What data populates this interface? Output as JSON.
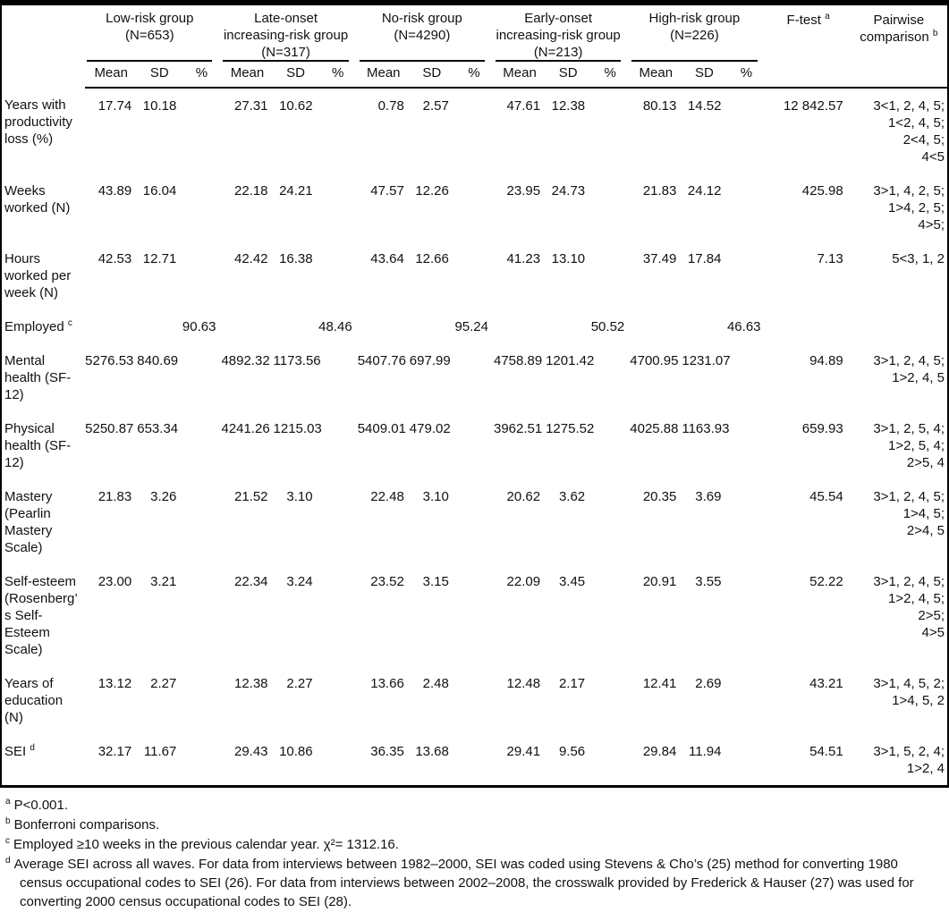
{
  "table": {
    "groups": [
      {
        "name": "Low-risk group",
        "n": "(N=653)"
      },
      {
        "name": "Late-onset increasing-risk group",
        "n": "(N=317)"
      },
      {
        "name": "No-risk group",
        "n": "(N=4290)"
      },
      {
        "name": "Early-onset increasing-risk group",
        "n": "(N=213)"
      },
      {
        "name": "High-risk group",
        "n": "(N=226)"
      }
    ],
    "subheaders": [
      "Mean",
      "SD",
      "%"
    ],
    "header": {
      "f_test": "F-test",
      "f_test_sup": "a",
      "pairwise": "Pairwise comparison",
      "pairwise_sup": "b"
    },
    "rows": [
      {
        "label": "Years with productivity loss (%)",
        "label_sup": "",
        "cols": [
          {
            "mean": "17.74",
            "sd": "10.18",
            "pct": ""
          },
          {
            "mean": "27.31",
            "sd": "10.62",
            "pct": ""
          },
          {
            "mean": "0.78",
            "sd": "2.57",
            "pct": ""
          },
          {
            "mean": "47.61",
            "sd": "12.38",
            "pct": ""
          },
          {
            "mean": "80.13",
            "sd": "14.52",
            "pct": ""
          }
        ],
        "f": "12 842.57",
        "pairwise": [
          "3<1, 2, 4, 5;",
          "1<2, 4, 5;",
          "2<4, 5;",
          "4<5"
        ]
      },
      {
        "label": "Weeks worked (N)",
        "label_sup": "",
        "cols": [
          {
            "mean": "43.89",
            "sd": "16.04",
            "pct": ""
          },
          {
            "mean": "22.18",
            "sd": "24.21",
            "pct": ""
          },
          {
            "mean": "47.57",
            "sd": "12.26",
            "pct": ""
          },
          {
            "mean": "23.95",
            "sd": "24.73",
            "pct": ""
          },
          {
            "mean": "21.83",
            "sd": "24.12",
            "pct": ""
          }
        ],
        "f": "425.98",
        "pairwise": [
          "3>1, 4, 2, 5;",
          "1>4, 2, 5;",
          "4>5;"
        ]
      },
      {
        "label": "Hours worked per week (N)",
        "label_sup": "",
        "cols": [
          {
            "mean": "42.53",
            "sd": "12.71",
            "pct": ""
          },
          {
            "mean": "42.42",
            "sd": "16.38",
            "pct": ""
          },
          {
            "mean": "43.64",
            "sd": "12.66",
            "pct": ""
          },
          {
            "mean": "41.23",
            "sd": "13.10",
            "pct": ""
          },
          {
            "mean": "37.49",
            "sd": "17.84",
            "pct": ""
          }
        ],
        "f": "7.13",
        "pairwise": [
          "5<3, 1, 2"
        ]
      },
      {
        "label": "Employed",
        "label_sup": "c",
        "cols": [
          {
            "mean": "",
            "sd": "",
            "pct": "90.63"
          },
          {
            "mean": "",
            "sd": "",
            "pct": "48.46"
          },
          {
            "mean": "",
            "sd": "",
            "pct": "95.24"
          },
          {
            "mean": "",
            "sd": "",
            "pct": "50.52"
          },
          {
            "mean": "",
            "sd": "",
            "pct": "46.63"
          }
        ],
        "f": "",
        "pairwise": []
      },
      {
        "label": "Mental health (SF-12)",
        "label_sup": "",
        "cols": [
          {
            "mean": "5276.53",
            "sd": "840.69",
            "pct": ""
          },
          {
            "mean": "4892.32",
            "sd": "1173.56",
            "pct": ""
          },
          {
            "mean": "5407.76",
            "sd": "697.99",
            "pct": ""
          },
          {
            "mean": "4758.89",
            "sd": "1201.42",
            "pct": ""
          },
          {
            "mean": "4700.95",
            "sd": "1231.07",
            "pct": ""
          }
        ],
        "f": "94.89",
        "pairwise": [
          "3>1, 2, 4, 5;",
          "1>2, 4, 5"
        ]
      },
      {
        "label": "Physical health (SF-12)",
        "label_sup": "",
        "cols": [
          {
            "mean": "5250.87",
            "sd": "653.34",
            "pct": ""
          },
          {
            "mean": "4241.26",
            "sd": "1215.03",
            "pct": ""
          },
          {
            "mean": "5409.01",
            "sd": "479.02",
            "pct": ""
          },
          {
            "mean": "3962.51",
            "sd": "1275.52",
            "pct": ""
          },
          {
            "mean": "4025.88",
            "sd": "1163.93",
            "pct": ""
          }
        ],
        "f": "659.93",
        "pairwise": [
          "3>1, 2, 5, 4;",
          "1>2, 5, 4;",
          "2>5, 4"
        ]
      },
      {
        "label": "Mastery (Pearlin Mastery Scale)",
        "label_sup": "",
        "cols": [
          {
            "mean": "21.83",
            "sd": "3.26",
            "pct": ""
          },
          {
            "mean": "21.52",
            "sd": "3.10",
            "pct": ""
          },
          {
            "mean": "22.48",
            "sd": "3.10",
            "pct": ""
          },
          {
            "mean": "20.62",
            "sd": "3.62",
            "pct": ""
          },
          {
            "mean": "20.35",
            "sd": "3.69",
            "pct": ""
          }
        ],
        "f": "45.54",
        "pairwise": [
          "3>1, 2, 4, 5;",
          "1>4, 5;",
          "2>4, 5"
        ]
      },
      {
        "label": "Self-esteem (Rosenberg’s Self-Esteem Scale)",
        "label_sup": "",
        "cols": [
          {
            "mean": "23.00",
            "sd": "3.21",
            "pct": ""
          },
          {
            "mean": "22.34",
            "sd": "3.24",
            "pct": ""
          },
          {
            "mean": "23.52",
            "sd": "3.15",
            "pct": ""
          },
          {
            "mean": "22.09",
            "sd": "3.45",
            "pct": ""
          },
          {
            "mean": "20.91",
            "sd": "3.55",
            "pct": ""
          }
        ],
        "f": "52.22",
        "pairwise": [
          "3>1, 2, 4, 5;",
          "1>2, 4, 5;",
          "2>5;",
          "4>5"
        ]
      },
      {
        "label": "Years of edu­cation (N)",
        "label_sup": "",
        "cols": [
          {
            "mean": "13.12",
            "sd": "2.27",
            "pct": ""
          },
          {
            "mean": "12.38",
            "sd": "2.27",
            "pct": ""
          },
          {
            "mean": "13.66",
            "sd": "2.48",
            "pct": ""
          },
          {
            "mean": "12.48",
            "sd": "2.17",
            "pct": ""
          },
          {
            "mean": "12.41",
            "sd": "2.69",
            "pct": ""
          }
        ],
        "f": "43.21",
        "pairwise": [
          "3>1, 4, 5, 2;",
          "1>4, 5, 2"
        ]
      },
      {
        "label": "SEI",
        "label_sup": "d",
        "cols": [
          {
            "mean": "32.17",
            "sd": "11.67",
            "pct": ""
          },
          {
            "mean": "29.43",
            "sd": "10.86",
            "pct": ""
          },
          {
            "mean": "36.35",
            "sd": "13.68",
            "pct": ""
          },
          {
            "mean": "29.41",
            "sd": "9.56",
            "pct": ""
          },
          {
            "mean": "29.84",
            "sd": "11.94",
            "pct": ""
          }
        ],
        "f": "54.51",
        "pairwise": [
          "3>1, 5, 2, 4;",
          "1>2, 4"
        ]
      }
    ]
  },
  "footnotes": [
    {
      "sup": "a",
      "text": "P<0.001."
    },
    {
      "sup": "b",
      "text": "Bonferroni comparisons."
    },
    {
      "sup": "c",
      "text": "Employed ≥10 weeks in the previous calendar year. χ²= 1312.16."
    },
    {
      "sup": "d",
      "text": "Average SEI across all waves. For data from interviews between 1982–2000, SEI was coded using Stevens & Cho’s (25) method for converting 1980 census occupational codes to SEI (26). For data from interviews between 2002–2008, the crosswalk provided by Frederick & Hauser (27) was used for converting 2000 census occupational codes to SEI (28)."
    }
  ]
}
